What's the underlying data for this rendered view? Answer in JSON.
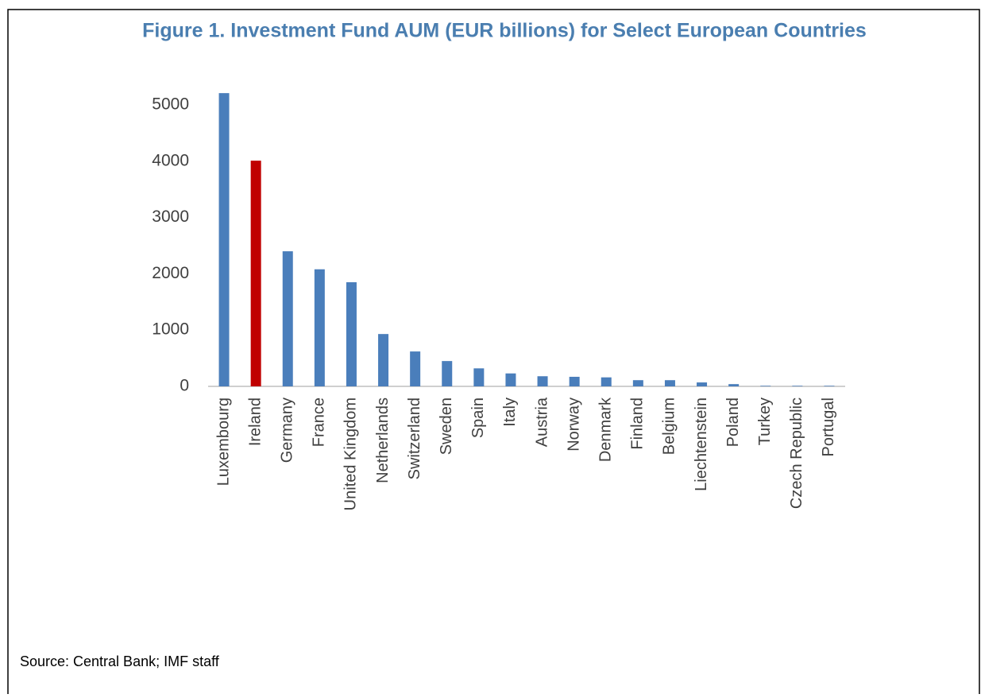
{
  "chart_data": {
    "type": "bar",
    "title": "Figure 1. Investment Fund AUM (EUR billions) for Select European Countries",
    "source": "Source: Central Bank; IMF staff",
    "categories": [
      "Luxembourg",
      "Ireland",
      "Germany",
      "France",
      "United Kingdom",
      "Netherlands",
      "Switzerland",
      "Sweden",
      "Spain",
      "Italy",
      "Austria",
      "Norway",
      "Denmark",
      "Finland",
      "Belgium",
      "Liechtenstein",
      "Poland",
      "Turkey",
      "Czech Republic",
      "Portugal"
    ],
    "values": [
      5210,
      4010,
      2400,
      2080,
      1850,
      930,
      620,
      450,
      320,
      230,
      180,
      170,
      160,
      110,
      110,
      70,
      40,
      10,
      10,
      10
    ],
    "colors": [
      "#4a7ebb",
      "#c00000",
      "#4a7ebb",
      "#4a7ebb",
      "#4a7ebb",
      "#4a7ebb",
      "#4a7ebb",
      "#4a7ebb",
      "#4a7ebb",
      "#4a7ebb",
      "#4a7ebb",
      "#4a7ebb",
      "#4a7ebb",
      "#4a7ebb",
      "#4a7ebb",
      "#4a7ebb",
      "#4a7ebb",
      "#4a7ebb",
      "#4a7ebb",
      "#4a7ebb"
    ],
    "ylim": [
      0,
      5210
    ],
    "yticks": [
      0,
      1000,
      2000,
      3000,
      4000,
      5000
    ],
    "grid": false
  }
}
